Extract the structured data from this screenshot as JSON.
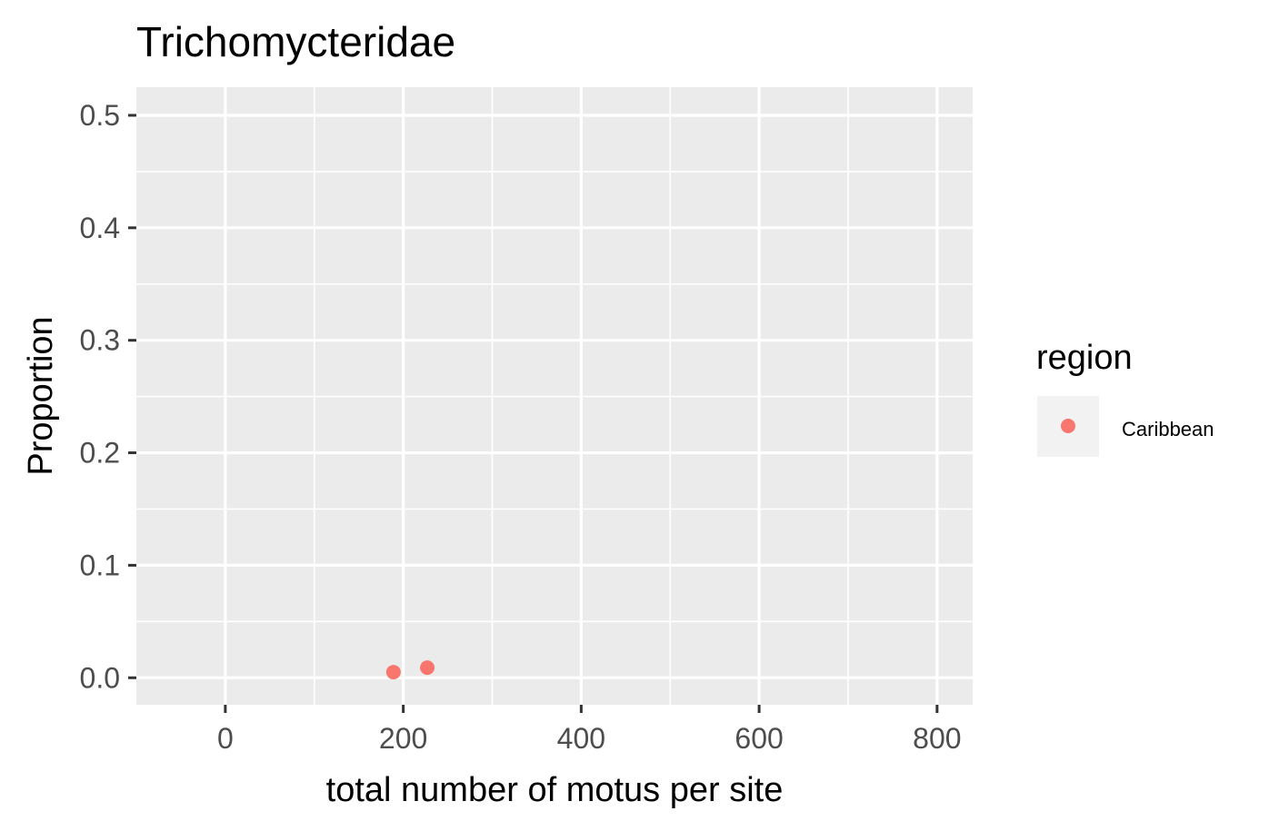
{
  "chart_data": {
    "type": "scatter",
    "title": "Trichomycteridae",
    "xlabel": "total number of motus per site",
    "ylabel": "Proportion",
    "xlim": [
      -100,
      840
    ],
    "ylim": [
      -0.024,
      0.525
    ],
    "x_ticks": [
      0,
      200,
      400,
      600,
      800
    ],
    "x_tick_labels": [
      "0",
      "200",
      "400",
      "600",
      "800"
    ],
    "y_ticks": [
      0.0,
      0.1,
      0.2,
      0.3,
      0.4,
      0.5
    ],
    "y_tick_labels": [
      "0.0",
      "0.1",
      "0.2",
      "0.3",
      "0.4",
      "0.5"
    ],
    "x_minor": [
      -100,
      100,
      300,
      500,
      700
    ],
    "y_minor": [
      0.05,
      0.15,
      0.25,
      0.35,
      0.45
    ],
    "grid": true,
    "legend_position": "right",
    "legend_title": "region",
    "series": [
      {
        "name": "Caribbean",
        "color": "#F8766D",
        "points": [
          {
            "x": 189,
            "y": 0.005
          },
          {
            "x": 227,
            "y": 0.009
          }
        ]
      }
    ],
    "panel_background": "#EBEBEB",
    "grid_color": "#FFFFFF"
  }
}
